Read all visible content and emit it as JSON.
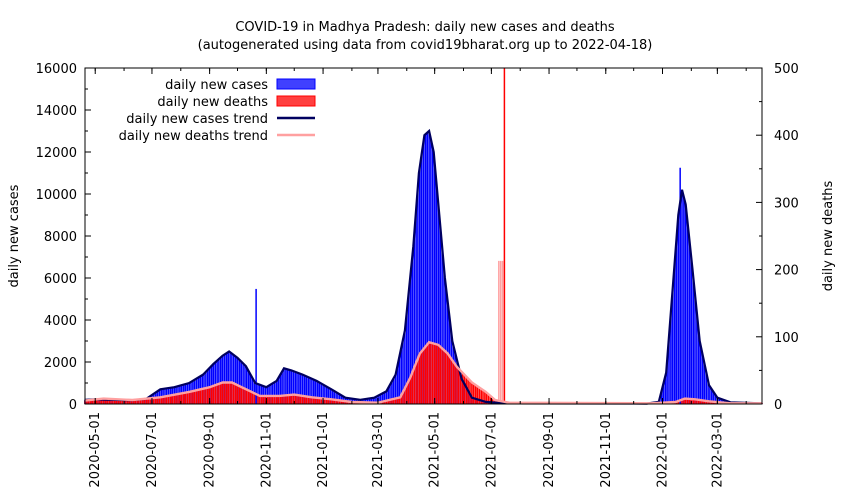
{
  "chart_data": {
    "type": "bar",
    "title": "COVID-19 in Madhya Pradesh: daily new cases and deaths",
    "subtitle": "(autogenerated using data from covid19bharat.org up to 2022-04-18)",
    "ylabel": "daily new cases",
    "y2label": "daily new deaths",
    "x_range": [
      "2020-04-20",
      "2022-04-18"
    ],
    "ylim": [
      0,
      16000
    ],
    "y2lim": [
      0,
      500
    ],
    "y_ticks": [
      "0",
      "2000",
      "4000",
      "6000",
      "8000",
      "10000",
      "12000",
      "14000",
      "16000"
    ],
    "y2_ticks": [
      "0",
      "100",
      "200",
      "300",
      "400",
      "500"
    ],
    "x_ticks": [
      "2020-05-01",
      "2020-07-01",
      "2020-09-01",
      "2020-11-01",
      "2021-01-01",
      "2021-03-01",
      "2021-05-01",
      "2021-07-01",
      "2021-09-01",
      "2021-11-01",
      "2022-01-01",
      "2022-03-01"
    ],
    "legend_position": "top-left",
    "legend": [
      {
        "label": "daily new cases",
        "kind": "box",
        "color": "#0000ff"
      },
      {
        "label": "daily new deaths",
        "kind": "box",
        "color": "#ff0000"
      },
      {
        "label": "daily new cases trend",
        "kind": "line",
        "color": "#000060"
      },
      {
        "label": "daily new deaths trend",
        "kind": "line",
        "color": "#ffa0a0"
      }
    ],
    "cases_trend": [
      [
        "2020-04-20",
        200
      ],
      [
        "2020-05-01",
        220
      ],
      [
        "2020-05-20",
        200
      ],
      [
        "2020-06-10",
        180
      ],
      [
        "2020-06-25",
        250
      ],
      [
        "2020-07-10",
        700
      ],
      [
        "2020-07-25",
        800
      ],
      [
        "2020-08-10",
        1000
      ],
      [
        "2020-08-25",
        1400
      ],
      [
        "2020-09-05",
        1900
      ],
      [
        "2020-09-15",
        2300
      ],
      [
        "2020-09-22",
        2500
      ],
      [
        "2020-10-01",
        2200
      ],
      [
        "2020-10-10",
        1800
      ],
      [
        "2020-10-20",
        1000
      ],
      [
        "2020-11-01",
        800
      ],
      [
        "2020-11-12",
        1100
      ],
      [
        "2020-11-20",
        1700
      ],
      [
        "2020-11-28",
        1600
      ],
      [
        "2020-12-10",
        1400
      ],
      [
        "2020-12-25",
        1100
      ],
      [
        "2021-01-10",
        700
      ],
      [
        "2021-01-25",
        300
      ],
      [
        "2021-02-10",
        200
      ],
      [
        "2021-02-25",
        300
      ],
      [
        "2021-03-10",
        600
      ],
      [
        "2021-03-20",
        1400
      ],
      [
        "2021-03-30",
        3500
      ],
      [
        "2021-04-08",
        7500
      ],
      [
        "2021-04-14",
        11000
      ],
      [
        "2021-04-20",
        12800
      ],
      [
        "2021-04-25",
        13000
      ],
      [
        "2021-04-30",
        12000
      ],
      [
        "2021-05-06",
        9000
      ],
      [
        "2021-05-12",
        6000
      ],
      [
        "2021-05-20",
        3000
      ],
      [
        "2021-05-30",
        1200
      ],
      [
        "2021-06-10",
        300
      ],
      [
        "2021-06-25",
        100
      ],
      [
        "2021-07-15",
        30
      ],
      [
        "2021-12-15",
        20
      ],
      [
        "2021-12-28",
        100
      ],
      [
        "2022-01-05",
        1500
      ],
      [
        "2022-01-12",
        5500
      ],
      [
        "2022-01-18",
        9000
      ],
      [
        "2022-01-22",
        10200
      ],
      [
        "2022-01-26",
        9500
      ],
      [
        "2022-02-02",
        6500
      ],
      [
        "2022-02-10",
        3000
      ],
      [
        "2022-02-20",
        900
      ],
      [
        "2022-03-01",
        300
      ],
      [
        "2022-03-15",
        80
      ],
      [
        "2022-04-18",
        30
      ]
    ],
    "deaths_trend": [
      [
        "2020-04-20",
        5
      ],
      [
        "2020-05-10",
        8
      ],
      [
        "2020-06-10",
        6
      ],
      [
        "2020-07-10",
        10
      ],
      [
        "2020-08-10",
        18
      ],
      [
        "2020-09-01",
        25
      ],
      [
        "2020-09-15",
        32
      ],
      [
        "2020-09-25",
        32
      ],
      [
        "2020-10-10",
        22
      ],
      [
        "2020-10-25",
        12
      ],
      [
        "2020-11-15",
        12
      ],
      [
        "2020-12-01",
        14
      ],
      [
        "2020-12-20",
        10
      ],
      [
        "2021-01-10",
        7
      ],
      [
        "2021-02-01",
        3
      ],
      [
        "2021-03-01",
        2
      ],
      [
        "2021-03-25",
        10
      ],
      [
        "2021-04-05",
        40
      ],
      [
        "2021-04-15",
        75
      ],
      [
        "2021-04-25",
        92
      ],
      [
        "2021-05-05",
        88
      ],
      [
        "2021-05-15",
        75
      ],
      [
        "2021-05-25",
        55
      ],
      [
        "2021-06-10",
        32
      ],
      [
        "2021-06-25",
        18
      ],
      [
        "2021-07-05",
        6
      ],
      [
        "2021-07-20",
        2
      ],
      [
        "2021-12-20",
        1
      ],
      [
        "2022-01-15",
        3
      ],
      [
        "2022-01-25",
        8
      ],
      [
        "2022-02-05",
        7
      ],
      [
        "2022-02-20",
        4
      ],
      [
        "2022-03-15",
        1
      ],
      [
        "2022-04-18",
        1
      ]
    ],
    "spikes": [
      {
        "date": "2020-10-21",
        "series": "daily new cases",
        "value": 5480
      },
      {
        "date": "2021-07-09",
        "series": "daily new deaths",
        "value": 213
      },
      {
        "date": "2021-07-11",
        "series": "daily new deaths",
        "value": 213
      },
      {
        "date": "2021-07-13",
        "series": "daily new deaths",
        "value": 213
      },
      {
        "date": "2021-07-15",
        "series": "daily new deaths",
        "value": 500
      },
      {
        "date": "2022-01-20",
        "series": "daily new cases",
        "value": 11250
      }
    ]
  }
}
